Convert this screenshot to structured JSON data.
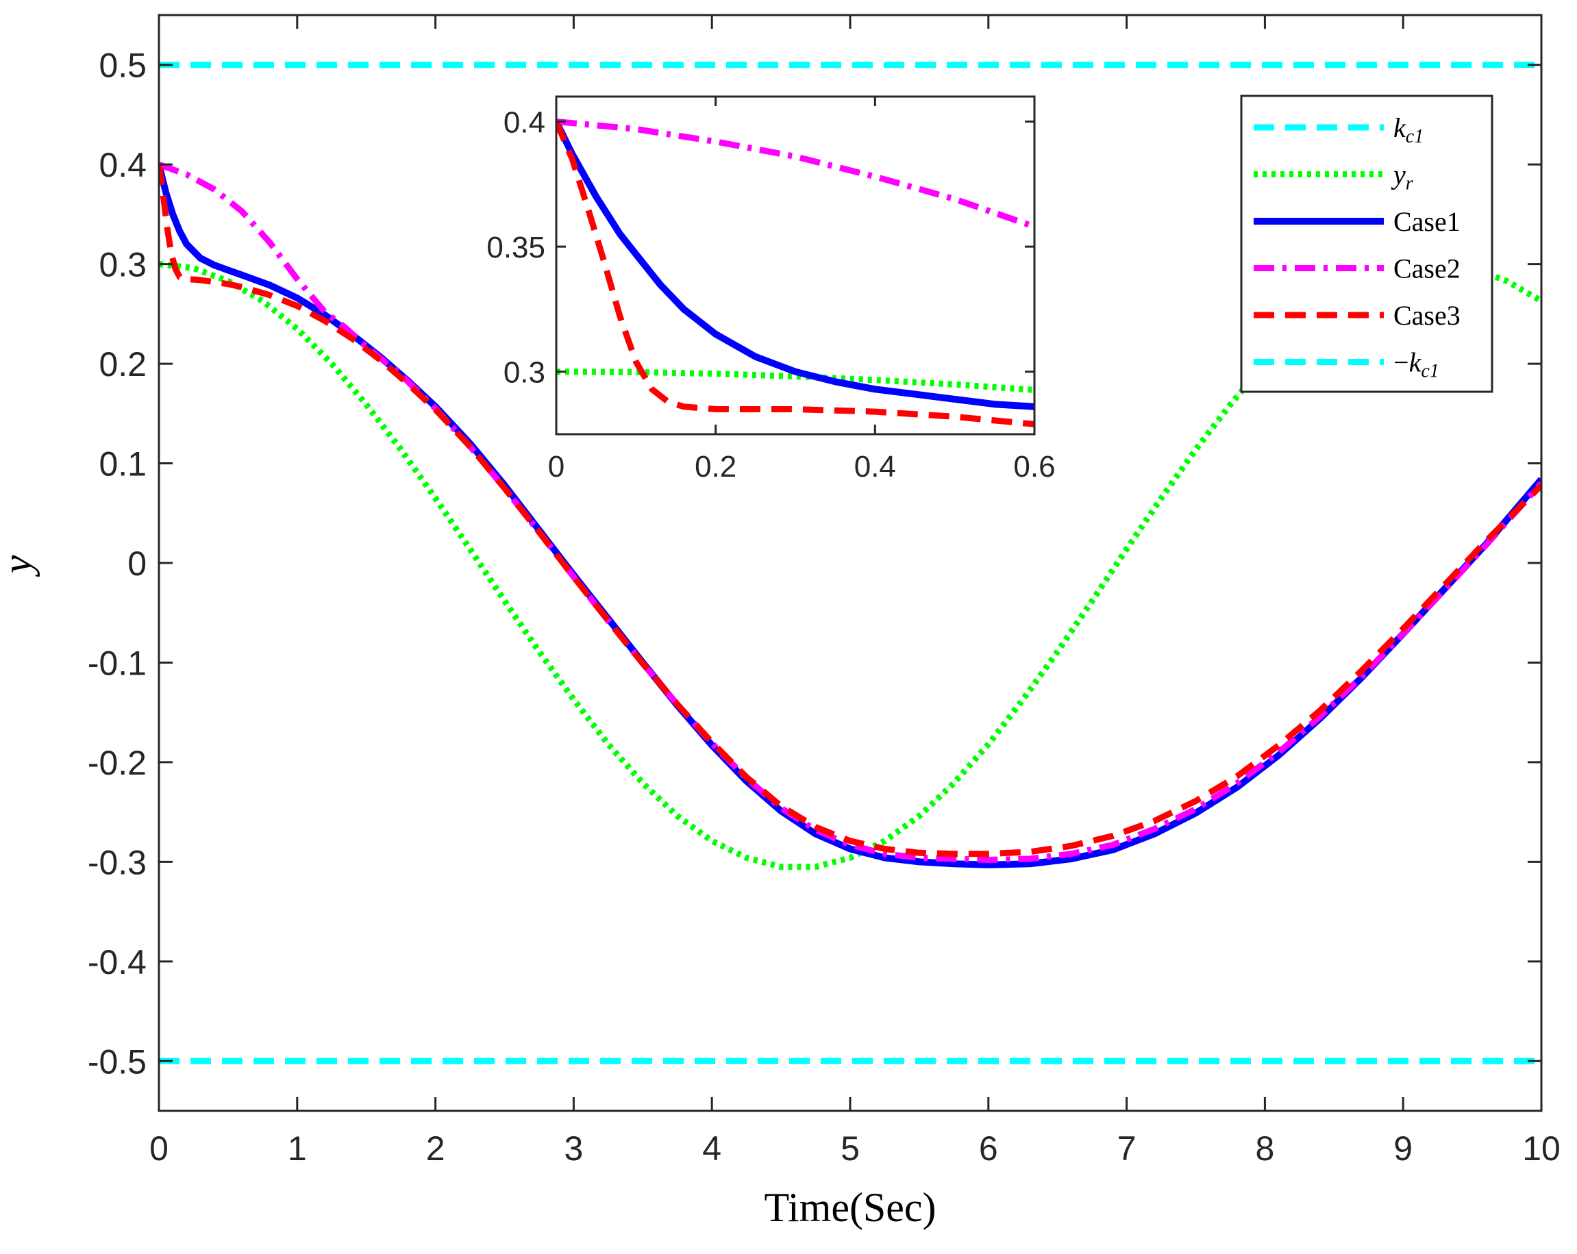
{
  "chart_data": {
    "type": "line",
    "xlabel": "Time(Sec)",
    "ylabel": "y",
    "xlim": [
      0,
      10
    ],
    "ylim": [
      -0.55,
      0.55
    ],
    "xticks": [
      0,
      1,
      2,
      3,
      4,
      5,
      6,
      7,
      8,
      9,
      10
    ],
    "xtick_labels": [
      "0",
      "1",
      "2",
      "3",
      "4",
      "5",
      "6",
      "7",
      "8",
      "9",
      "10"
    ],
    "yticks": [
      -0.5,
      -0.4,
      -0.3,
      -0.2,
      -0.1,
      0,
      0.1,
      0.2,
      0.3,
      0.4,
      0.5
    ],
    "ytick_labels": [
      "-0.5",
      "-0.4",
      "-0.3",
      "-0.2",
      "-0.1",
      "0",
      "0.1",
      "0.2",
      "0.3",
      "0.4",
      "0.5"
    ],
    "grid": false,
    "legend_position": "top-right",
    "legend": [
      {
        "name": "kc1",
        "label": "k",
        "sub": "c1",
        "prefix": "",
        "color": "#00FFFF",
        "dash": "dashed"
      },
      {
        "name": "yr",
        "label": "y",
        "sub": "r",
        "prefix": "",
        "color": "#00FF00",
        "dash": "dotted"
      },
      {
        "name": "case1",
        "label": "Case1",
        "sub": "",
        "prefix": "",
        "color": "#0000FF",
        "dash": "solid"
      },
      {
        "name": "case2",
        "label": "Case2",
        "sub": "",
        "prefix": "",
        "color": "#FF00FF",
        "dash": "dashdot"
      },
      {
        "name": "case3",
        "label": "Case3",
        "sub": "",
        "prefix": "",
        "color": "#FF0000",
        "dash": "dashed"
      },
      {
        "name": "neg-kc1",
        "label": "k",
        "sub": "c1",
        "prefix": "−",
        "color": "#00FFFF",
        "dash": "dashed"
      }
    ],
    "series": [
      {
        "name": "kc1",
        "color": "#00FFFF",
        "dash": "dashed",
        "x": [
          0,
          10
        ],
        "y": [
          0.5,
          0.5
        ]
      },
      {
        "name": "neg-kc1",
        "color": "#00FFFF",
        "dash": "dashed",
        "x": [
          0,
          10
        ],
        "y": [
          -0.5,
          -0.5
        ]
      },
      {
        "name": "yr",
        "color": "#00FF00",
        "dash": "dotted",
        "x": [
          0,
          0.25,
          0.5,
          0.75,
          1,
          1.25,
          1.5,
          1.75,
          2,
          2.25,
          2.5,
          2.75,
          3,
          3.25,
          3.5,
          3.75,
          4,
          4.25,
          4.5,
          4.75,
          5,
          5.25,
          5.5,
          5.75,
          6,
          6.25,
          6.5,
          6.75,
          7,
          7.25,
          7.5,
          7.75,
          8,
          8.25,
          8.5,
          8.75,
          9,
          9.25,
          9.5,
          9.75,
          10
        ],
        "y": [
          0.3,
          0.296,
          0.283,
          0.263,
          0.235,
          0.2,
          0.159,
          0.114,
          0.065,
          0.014,
          -0.038,
          -0.089,
          -0.137,
          -0.182,
          -0.221,
          -0.254,
          -0.279,
          -0.296,
          -0.305,
          -0.305,
          -0.296,
          -0.279,
          -0.254,
          -0.221,
          -0.182,
          -0.137,
          -0.089,
          -0.038,
          0.014,
          0.065,
          0.114,
          0.159,
          0.2,
          0.235,
          0.263,
          0.283,
          0.296,
          0.3,
          0.296,
          0.283,
          0.263
        ]
      },
      {
        "name": "case1",
        "color": "#0000FF",
        "dash": "solid",
        "x": [
          0,
          0.05,
          0.1,
          0.15,
          0.2,
          0.3,
          0.4,
          0.5,
          0.6,
          0.8,
          1.0,
          1.2,
          1.4,
          1.6,
          1.8,
          2.0,
          2.25,
          2.5,
          2.75,
          3.0,
          3.25,
          3.5,
          3.75,
          4.0,
          4.25,
          4.5,
          4.75,
          5.0,
          5.25,
          5.5,
          5.75,
          6.0,
          6.3,
          6.6,
          6.9,
          7.2,
          7.5,
          7.8,
          8.1,
          8.4,
          8.7,
          9.0,
          9.3,
          9.6,
          10.0
        ],
        "y": [
          0.4,
          0.372,
          0.35,
          0.333,
          0.32,
          0.306,
          0.299,
          0.294,
          0.289,
          0.279,
          0.266,
          0.249,
          0.229,
          0.207,
          0.183,
          0.157,
          0.12,
          0.078,
          0.033,
          -0.012,
          -0.056,
          -0.1,
          -0.143,
          -0.183,
          -0.219,
          -0.249,
          -0.272,
          -0.287,
          -0.296,
          -0.3,
          -0.302,
          -0.303,
          -0.302,
          -0.297,
          -0.288,
          -0.272,
          -0.251,
          -0.225,
          -0.193,
          -0.156,
          -0.115,
          -0.071,
          -0.026,
          0.019,
          0.084
        ]
      },
      {
        "name": "case2",
        "color": "#FF00FF",
        "dash": "dashdot",
        "x": [
          0,
          0.2,
          0.4,
          0.6,
          0.8,
          1.0,
          1.2,
          1.35,
          1.5,
          1.75,
          2.0,
          2.25,
          2.5,
          2.75,
          3.0,
          3.25,
          3.5,
          3.75,
          4.0,
          4.25,
          4.5,
          4.75,
          5.0,
          5.25,
          5.5,
          5.75,
          6.0,
          6.3,
          6.6,
          6.9,
          7.2,
          7.5,
          7.8,
          8.1,
          8.4,
          8.7,
          9.0,
          9.3,
          9.6,
          10.0
        ],
        "y": [
          0.4,
          0.39,
          0.375,
          0.353,
          0.322,
          0.285,
          0.252,
          0.236,
          0.217,
          0.189,
          0.155,
          0.117,
          0.075,
          0.031,
          -0.014,
          -0.058,
          -0.101,
          -0.142,
          -0.181,
          -0.216,
          -0.246,
          -0.268,
          -0.283,
          -0.292,
          -0.296,
          -0.297,
          -0.298,
          -0.297,
          -0.292,
          -0.283,
          -0.267,
          -0.247,
          -0.221,
          -0.19,
          -0.154,
          -0.114,
          -0.071,
          -0.027,
          0.018,
          0.08
        ]
      },
      {
        "name": "case3",
        "color": "#FF0000",
        "dash": "dashed",
        "x": [
          0,
          0.03,
          0.06,
          0.09,
          0.12,
          0.15,
          0.2,
          0.3,
          0.4,
          0.5,
          0.6,
          0.8,
          1.0,
          1.2,
          1.4,
          1.6,
          1.8,
          2.0,
          2.25,
          2.5,
          2.75,
          3.0,
          3.25,
          3.5,
          3.75,
          4.0,
          4.25,
          4.5,
          4.75,
          5.0,
          5.25,
          5.5,
          5.75,
          6.0,
          6.3,
          6.6,
          6.9,
          7.2,
          7.5,
          7.8,
          8.1,
          8.4,
          8.7,
          9.0,
          9.3,
          9.6,
          10.0
        ],
        "y": [
          0.4,
          0.37,
          0.336,
          0.31,
          0.295,
          0.287,
          0.285,
          0.284,
          0.282,
          0.28,
          0.277,
          0.269,
          0.258,
          0.243,
          0.225,
          0.204,
          0.18,
          0.154,
          0.117,
          0.075,
          0.031,
          -0.014,
          -0.058,
          -0.101,
          -0.142,
          -0.18,
          -0.215,
          -0.244,
          -0.265,
          -0.279,
          -0.287,
          -0.291,
          -0.292,
          -0.292,
          -0.29,
          -0.284,
          -0.274,
          -0.259,
          -0.239,
          -0.214,
          -0.183,
          -0.148,
          -0.108,
          -0.066,
          -0.022,
          0.022,
          0.078
        ]
      }
    ],
    "inset": {
      "xlim": [
        0,
        0.6
      ],
      "ylim": [
        0.275,
        0.41
      ],
      "xticks": [
        0,
        0.2,
        0.4,
        0.6
      ],
      "xtick_labels": [
        "0",
        "0.2",
        "0.4",
        "0.6"
      ],
      "yticks": [
        0.3,
        0.35,
        0.4
      ],
      "ytick_labels": [
        "0.3",
        "0.35",
        "0.4"
      ],
      "series": [
        {
          "name": "yr",
          "color": "#00FF00",
          "dash": "dotted",
          "x": [
            0,
            0.1,
            0.2,
            0.3,
            0.4,
            0.5,
            0.6
          ],
          "y": [
            0.3,
            0.2998,
            0.2992,
            0.2981,
            0.2967,
            0.2949,
            0.2927
          ]
        },
        {
          "name": "case1",
          "color": "#0000FF",
          "dash": "solid",
          "x": [
            0,
            0.02,
            0.05,
            0.08,
            0.1,
            0.13,
            0.16,
            0.2,
            0.25,
            0.3,
            0.35,
            0.4,
            0.45,
            0.5,
            0.55,
            0.6
          ],
          "y": [
            0.4,
            0.387,
            0.37,
            0.355,
            0.347,
            0.335,
            0.325,
            0.315,
            0.306,
            0.3,
            0.296,
            0.293,
            0.291,
            0.289,
            0.287,
            0.286
          ]
        },
        {
          "name": "case2",
          "color": "#FF00FF",
          "dash": "dashdot",
          "x": [
            0,
            0.1,
            0.2,
            0.3,
            0.4,
            0.5,
            0.6
          ],
          "y": [
            0.4,
            0.397,
            0.392,
            0.386,
            0.378,
            0.369,
            0.358
          ]
        },
        {
          "name": "case3",
          "color": "#FF0000",
          "dash": "dashed",
          "x": [
            0,
            0.02,
            0.04,
            0.06,
            0.08,
            0.1,
            0.12,
            0.14,
            0.16,
            0.2,
            0.3,
            0.4,
            0.5,
            0.6
          ],
          "y": [
            0.4,
            0.385,
            0.365,
            0.344,
            0.322,
            0.304,
            0.293,
            0.288,
            0.286,
            0.285,
            0.285,
            0.284,
            0.282,
            0.279
          ]
        }
      ]
    }
  }
}
